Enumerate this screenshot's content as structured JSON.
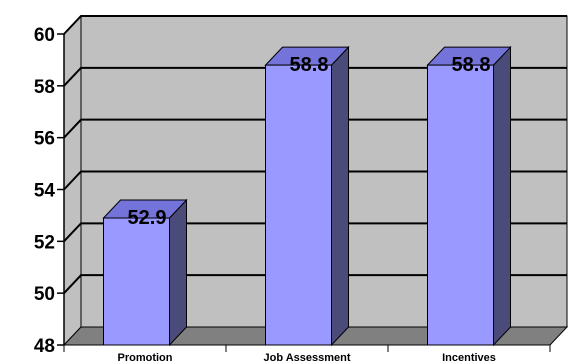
{
  "chart_data": {
    "type": "bar",
    "categories": [
      "Promotion",
      "Job Assessment",
      "Incentives"
    ],
    "values": [
      52.9,
      58.8,
      58.8
    ],
    "data_labels": [
      "52.9",
      "58.8",
      "58.8"
    ],
    "ylim": [
      48,
      60
    ],
    "yticks": [
      48,
      50,
      52,
      54,
      56,
      58,
      60
    ],
    "ytick_labels": [
      "48",
      "50",
      "52",
      "54",
      "56",
      "58",
      "60"
    ],
    "grid": true,
    "style": "3d",
    "colors": {
      "bar_front": "#9999ff",
      "bar_side": "#4b4b7a",
      "bar_top": "#7373d9",
      "wall": "#c0c0c0",
      "floor": "#808080",
      "outline": "#000000"
    }
  }
}
